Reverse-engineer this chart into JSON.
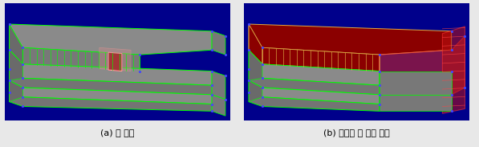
{
  "bg_color": "#00008B",
  "floor_color": "#909090",
  "wall_dark": "#707070",
  "wall_side": "#808080",
  "grid_color": "#00FF00",
  "node_color": "#4444FF",
  "red_dark": "#8B0000",
  "red_light": "#CC3333",
  "red_trans": "#FF8888",
  "white": "#FFFFFF",
  "yellow": "#DDAA44",
  "caption_left": "(a) 면 선택",
  "caption_right": "(b) 연결된 면 모두 선택",
  "caption_fontsize": 8,
  "fig_bg": "#E8E8E8"
}
